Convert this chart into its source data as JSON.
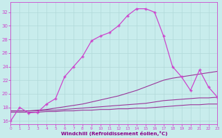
{
  "bg_color": "#c8ecec",
  "grid_color": "#b0d8d8",
  "xlabel": "Windchill (Refroidissement éolien,°C)",
  "xlim": [
    0,
    23
  ],
  "ylim": [
    15.5,
    33.5
  ],
  "yticks": [
    16,
    18,
    20,
    22,
    24,
    26,
    28,
    30,
    32
  ],
  "xticks": [
    0,
    1,
    2,
    3,
    4,
    5,
    6,
    7,
    8,
    9,
    10,
    11,
    12,
    13,
    14,
    15,
    16,
    17,
    18,
    19,
    20,
    21,
    22,
    23
  ],
  "main_x": [
    0,
    1,
    2,
    3,
    4,
    5,
    6,
    7,
    8,
    9,
    10,
    11,
    12,
    13,
    14,
    15,
    16,
    17,
    18,
    19,
    20,
    21,
    22,
    23
  ],
  "main_y": [
    16.0,
    18.0,
    17.2,
    17.3,
    18.5,
    19.3,
    22.5,
    24.0,
    25.5,
    27.8,
    28.5,
    29.0,
    30.0,
    31.5,
    32.5,
    32.5,
    32.0,
    28.5,
    24.0,
    22.5,
    20.5,
    23.5,
    21.0,
    19.5
  ],
  "line2_x": [
    0,
    1,
    2,
    3,
    4,
    5,
    6,
    7,
    8,
    9,
    10,
    11,
    12,
    13,
    14,
    15,
    16,
    17,
    18,
    19,
    20,
    21,
    22,
    23
  ],
  "line2_y": [
    17.5,
    17.5,
    17.5,
    17.6,
    17.7,
    17.9,
    18.1,
    18.3,
    18.5,
    18.8,
    19.1,
    19.4,
    19.7,
    20.1,
    20.5,
    21.0,
    21.5,
    22.0,
    22.3,
    22.5,
    22.7,
    22.9,
    23.1,
    23.3
  ],
  "line3_x": [
    0,
    1,
    2,
    3,
    4,
    5,
    6,
    7,
    8,
    9,
    10,
    11,
    12,
    13,
    14,
    15,
    16,
    17,
    18,
    19,
    20,
    21,
    22,
    23
  ],
  "line3_y": [
    17.5,
    17.5,
    17.5,
    17.5,
    17.6,
    17.6,
    17.7,
    17.8,
    17.9,
    18.0,
    18.1,
    18.2,
    18.3,
    18.4,
    18.5,
    18.6,
    18.8,
    19.0,
    19.1,
    19.2,
    19.3,
    19.4,
    19.4,
    19.5
  ],
  "line4_x": [
    0,
    1,
    2,
    3,
    4,
    5,
    6,
    7,
    8,
    9,
    10,
    11,
    12,
    13,
    14,
    15,
    16,
    17,
    18,
    19,
    20,
    21,
    22,
    23
  ],
  "line4_y": [
    17.3,
    17.3,
    17.3,
    17.3,
    17.4,
    17.4,
    17.5,
    17.5,
    17.6,
    17.6,
    17.7,
    17.7,
    17.8,
    17.8,
    17.9,
    17.9,
    18.0,
    18.1,
    18.2,
    18.3,
    18.4,
    18.4,
    18.5,
    18.5
  ],
  "main_color": "#cc44cc",
  "sub_color1": "#993399",
  "sub_color2": "#993399",
  "sub_color3": "#993399"
}
